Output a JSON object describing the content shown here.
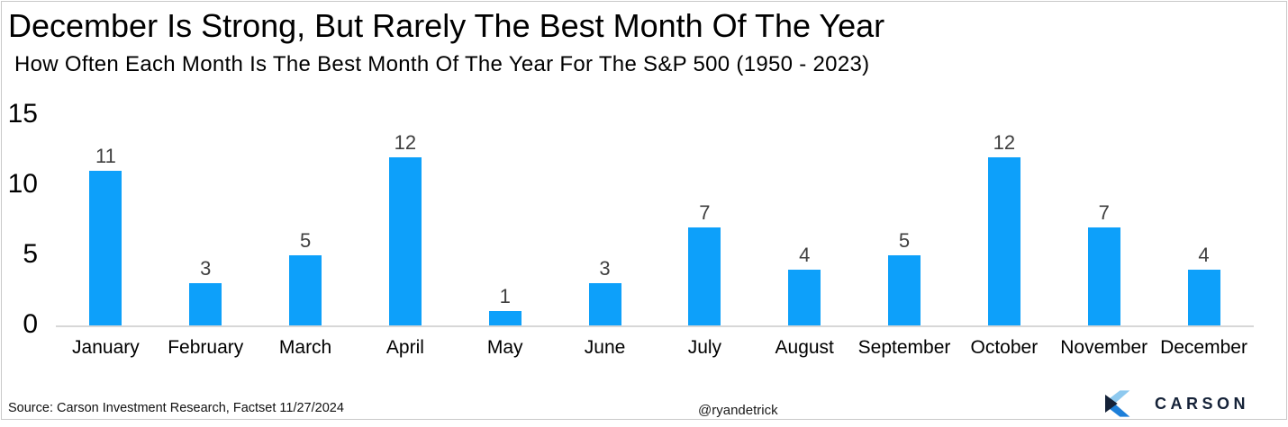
{
  "chart_data": {
    "type": "bar",
    "title": "December Is Strong, But Rarely The Best Month Of The Year",
    "subtitle": "How Often Each Month Is The Best Month Of The Year For The S&P 500 (1950 - 2023)",
    "categories": [
      "January",
      "February",
      "March",
      "April",
      "May",
      "June",
      "July",
      "August",
      "September",
      "October",
      "November",
      "December"
    ],
    "values": [
      11,
      3,
      5,
      12,
      1,
      3,
      7,
      4,
      5,
      12,
      7,
      4
    ],
    "xlabel": "",
    "ylabel": "",
    "ylim": [
      0,
      15
    ],
    "yticks": [
      0,
      5,
      10,
      15
    ],
    "grid": false,
    "legend": "none",
    "data_labels": true
  },
  "footer": {
    "source": "Source: Carson Investment Research, Factset 11/27/2024",
    "handle": "@ryandetrick",
    "logo_text": "CARSON"
  },
  "colors": {
    "bar": "#0DA0FA",
    "value_label": "#3f3f3f",
    "axis_line": "#d7d7d7",
    "logo_navy": "#152238",
    "logo_light_blue": "#8ec9ef",
    "logo_mid_blue": "#1d7fd9"
  }
}
